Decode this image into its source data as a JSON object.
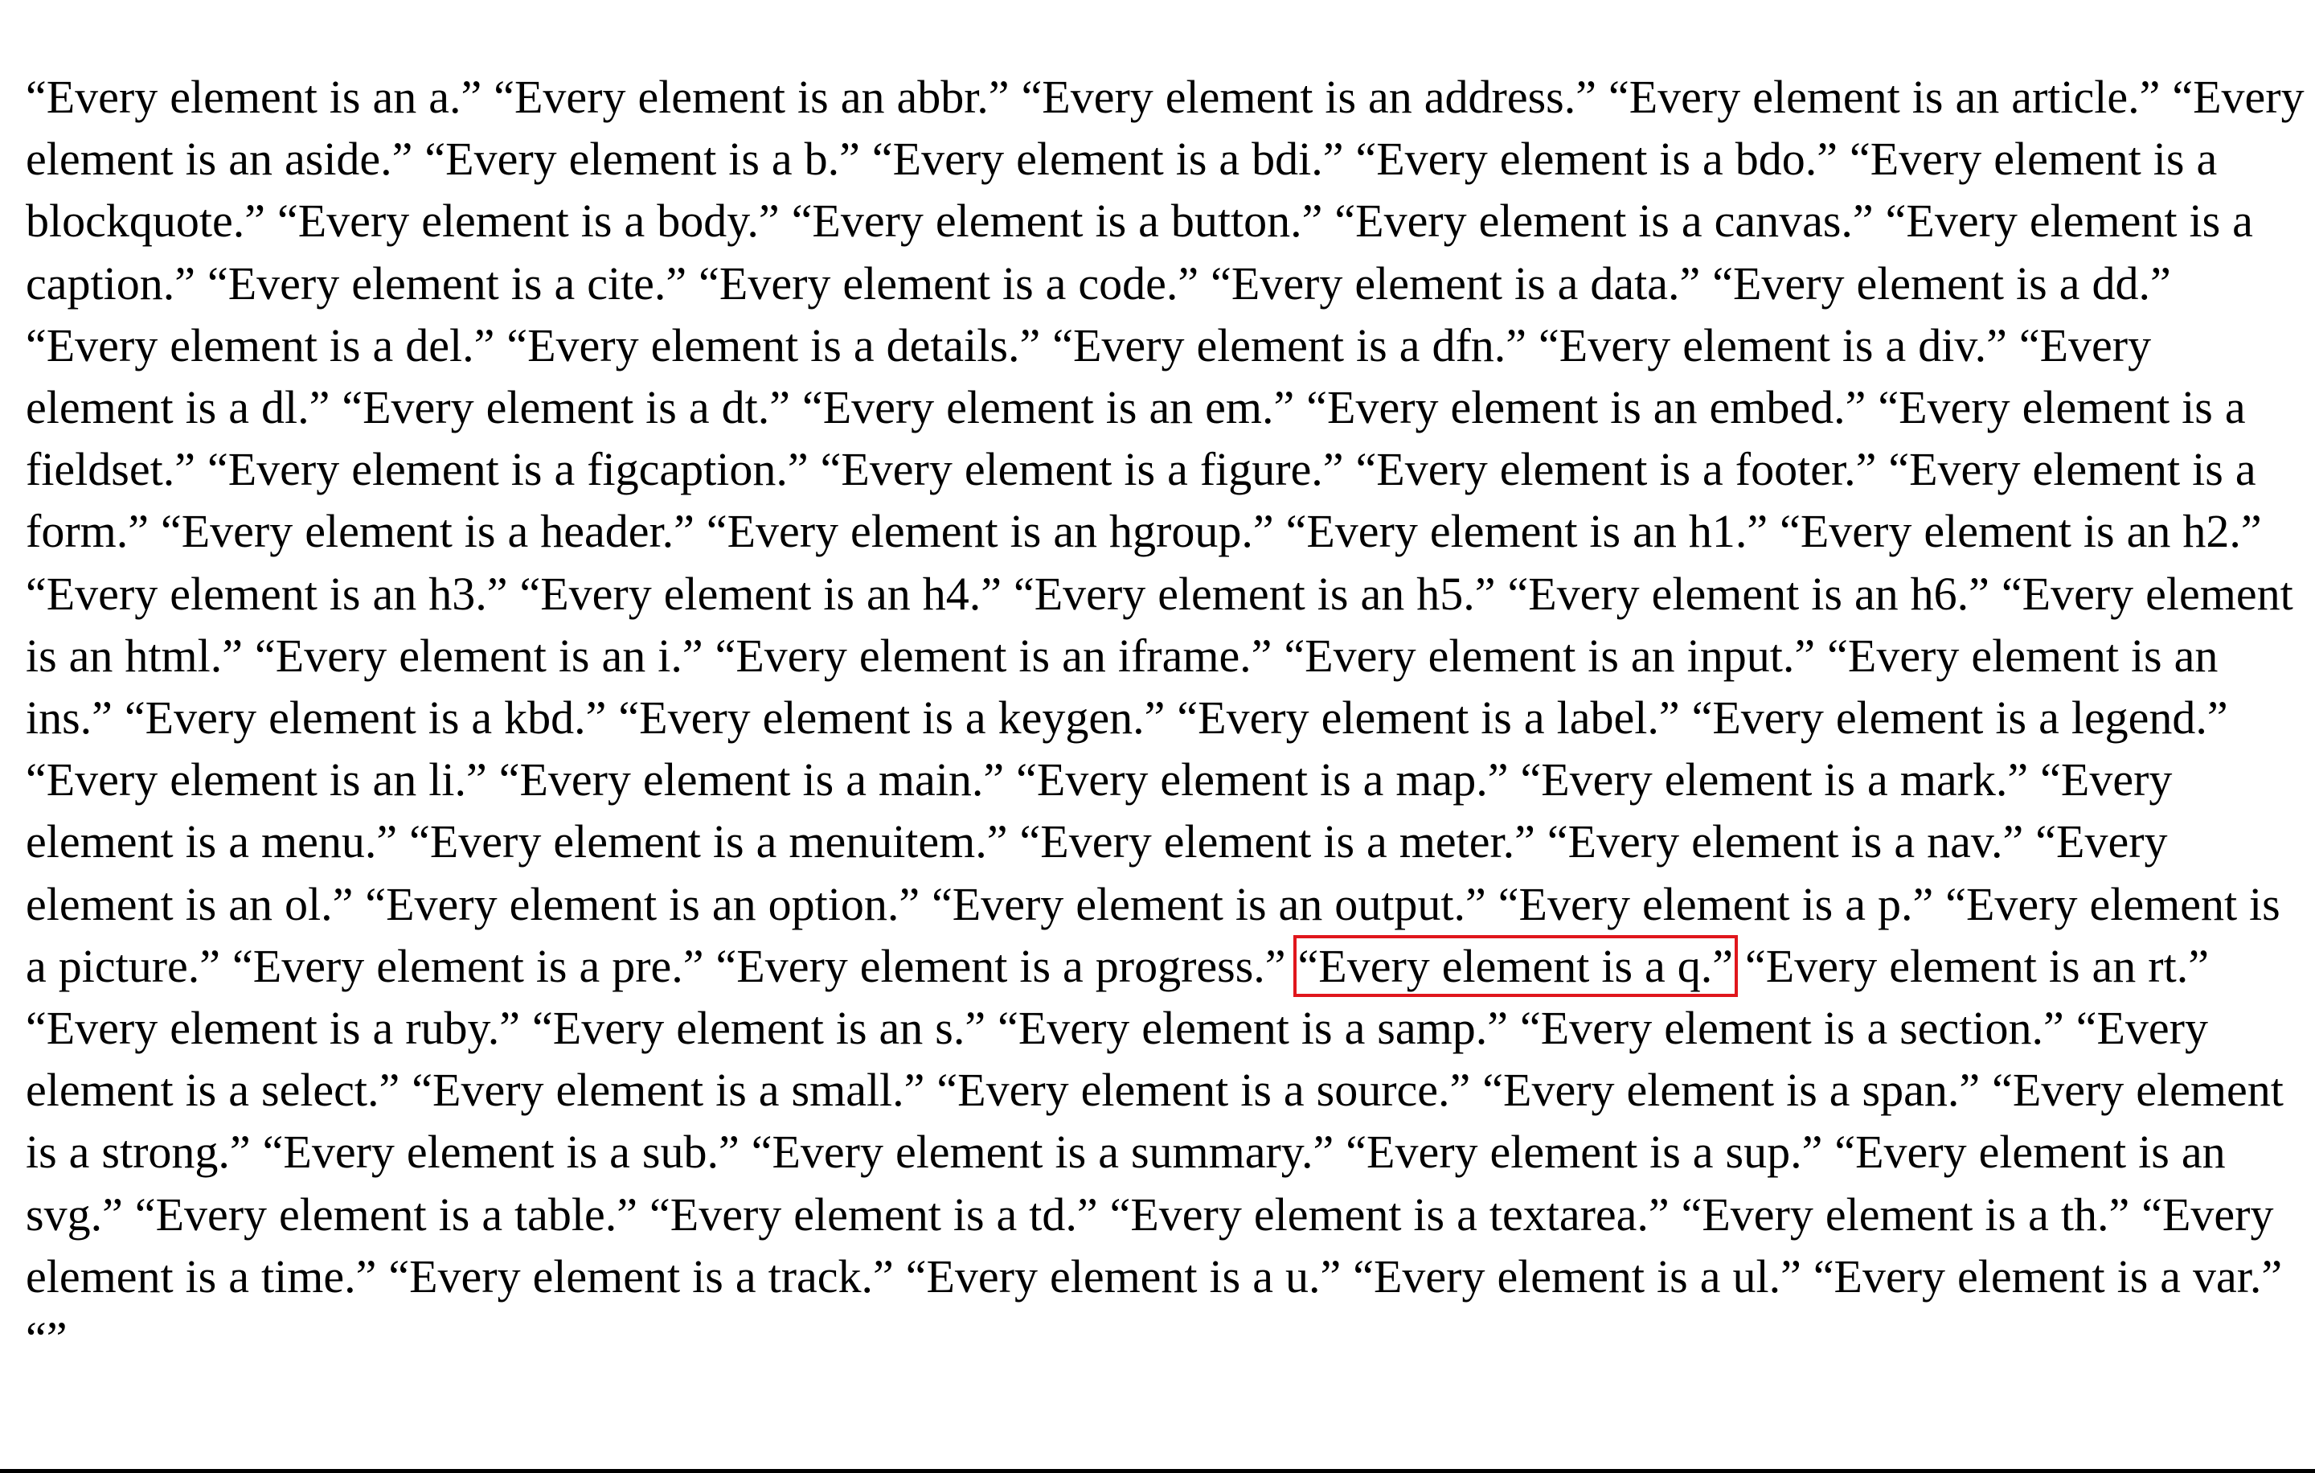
{
  "quotes": [
    "“Every element is an a.”",
    "“Every element is an abbr.”",
    "“Every element is an address.”",
    "“Every element is an article.”",
    "“Every element is an aside.”",
    "“Every element is a b.”",
    "“Every element is a bdi.”",
    "“Every element is a bdo.”",
    "“Every element is a blockquote.”",
    "“Every element is a body.”",
    "“Every element is a button.”",
    "“Every element is a canvas.”",
    "“Every element is a caption.”",
    "“Every element is a cite.”",
    "“Every element is a code.”",
    "“Every element is a data.”",
    "“Every element is a dd.”",
    "“Every element is a del.”",
    "“Every element is a details.”",
    "“Every element is a dfn.”",
    "“Every element is a div.”",
    "“Every element is a dl.”",
    "“Every element is a dt.”",
    "“Every element is an em.”",
    "“Every element is an embed.”",
    "“Every element is a fieldset.”",
    "“Every element is a figcaption.”",
    "“Every element is a figure.”",
    "“Every element is a footer.”",
    "“Every element is a form.”",
    "“Every element is a header.”",
    "“Every element is an hgroup.”",
    "“Every element is an h1.”",
    "“Every element is an h2.”",
    "“Every element is an h3.”",
    "“Every element is an h4.”",
    "“Every element is an h5.”",
    "“Every element is an h6.”",
    "“Every element is an html.”",
    "“Every element is an i.”",
    "“Every element is an iframe.”",
    "“Every element is an input.”",
    "“Every element is an ins.”",
    "“Every element is a kbd.”",
    "“Every element is a keygen.”",
    "“Every element is a label.”",
    "“Every element is a legend.”",
    "“Every element is an li.”",
    "“Every element is a main.”",
    "“Every element is a map.”",
    "“Every element is a mark.”",
    "“Every element is a menu.”",
    "“Every element is a menuitem.”",
    "“Every element is a meter.”",
    "“Every element is a nav.”",
    "“Every element is an ol.”",
    "“Every element is an option.”",
    "“Every element is an output.”",
    "“Every element is a p.”",
    "“Every element is a picture.”",
    "“Every element is a pre.”",
    "“Every element is a progress.”",
    "“Every element is a q.”",
    "“Every element is an rt.”",
    "“Every element is a ruby.”",
    "“Every element is an s.”",
    "“Every element is a samp.”",
    "“Every element is a section.”",
    "“Every element is a select.”",
    "“Every element is a small.”",
    "“Every element is a source.”",
    "“Every element is a span.”",
    "“Every element is a strong.”",
    "“Every element is a sub.”",
    "“Every element is a summary.”",
    "“Every element is a sup.”",
    "“Every element is an svg.”",
    "“Every element is a table.”",
    "“Every element is a td.”",
    "“Every element is a textarea.”",
    "“Every element is a th.”",
    "“Every element is a time.”",
    "“Every element is a track.”",
    "“Every element is a u.”",
    "“Every element is a ul.”",
    "“Every element is a var.”",
    "“”"
  ],
  "highlight_color": "#e0161c",
  "highlighted_index": 62
}
